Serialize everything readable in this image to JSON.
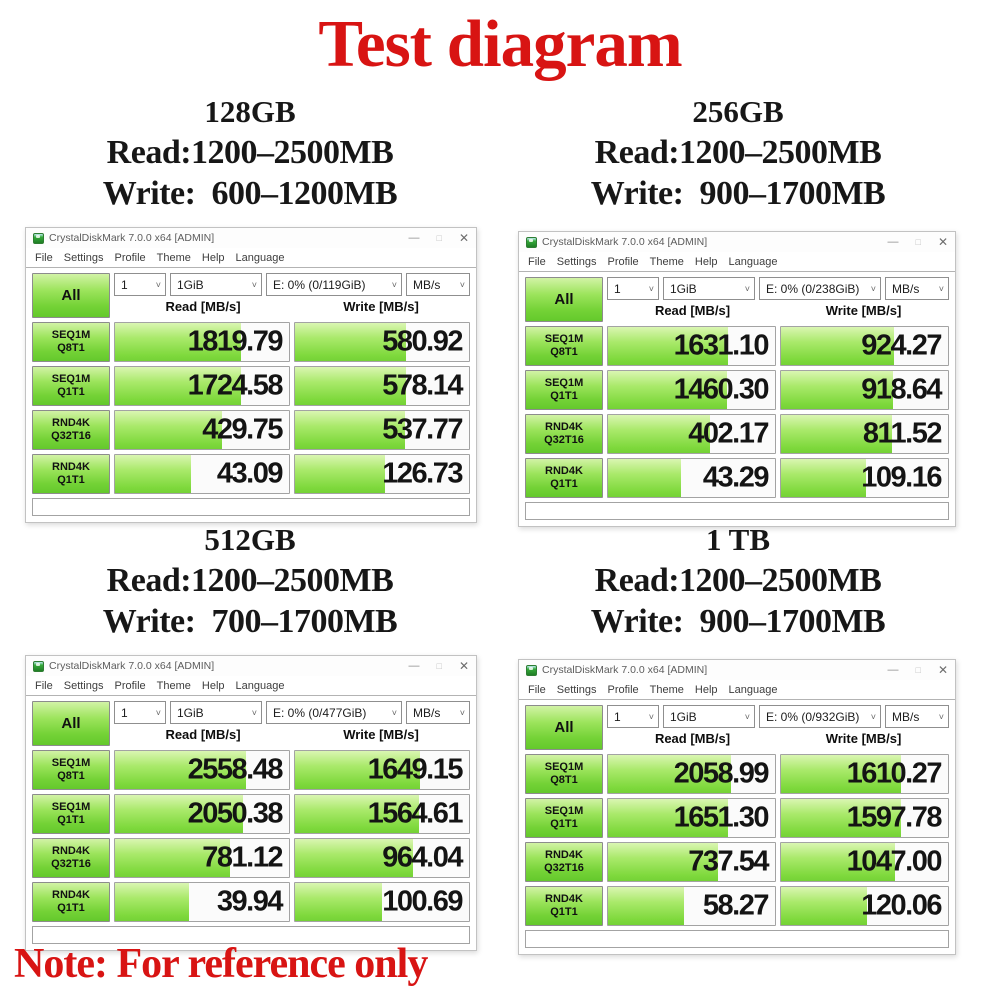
{
  "page": {
    "title": "Test diagram",
    "note": "Note: For reference only",
    "title_color": "#d81413",
    "bar_green": "#7ed63f"
  },
  "chrome": {
    "minimize": "—",
    "maximize": "□",
    "close": "✕"
  },
  "sections": [
    {
      "capacity": "128GB",
      "read_line": "Read:1200–2500MB",
      "write_line": "Write:  600–1200MB",
      "window": {
        "title": "CrystalDiskMark 7.0.0 x64 [ADMIN]",
        "menu": [
          "File",
          "Settings",
          "Profile",
          "Theme",
          "Help",
          "Language"
        ],
        "all_label": "All",
        "dropdowns": {
          "count": "1",
          "size": "1GiB",
          "drive": "E: 0% (0/119GiB)",
          "unit": "MB/s"
        },
        "read_header": "Read [MB/s]",
        "write_header": "Write [MB/s]",
        "rows": [
          {
            "label1": "SEQ1M",
            "label2": "Q8T1",
            "read": "1819.79",
            "write": "580.92"
          },
          {
            "label1": "SEQ1M",
            "label2": "Q1T1",
            "read": "1724.58",
            "write": "578.14"
          },
          {
            "label1": "RND4K",
            "label2": "Q32T16",
            "read": "429.75",
            "write": "537.77"
          },
          {
            "label1": "RND4K",
            "label2": "Q1T1",
            "read": "43.09",
            "write": "126.73"
          }
        ]
      }
    },
    {
      "capacity": "256GB",
      "read_line": "Read:1200–2500MB",
      "write_line": "Write:  900–1700MB",
      "window": {
        "title": "CrystalDiskMark 7.0.0 x64 [ADMIN]",
        "menu": [
          "File",
          "Settings",
          "Profile",
          "Theme",
          "Help",
          "Language"
        ],
        "all_label": "All",
        "dropdowns": {
          "count": "1",
          "size": "1GiB",
          "drive": "E: 0% (0/238GiB)",
          "unit": "MB/s"
        },
        "read_header": "Read [MB/s]",
        "write_header": "Write [MB/s]",
        "rows": [
          {
            "label1": "SEQ1M",
            "label2": "Q8T1",
            "read": "1631.10",
            "write": "924.27"
          },
          {
            "label1": "SEQ1M",
            "label2": "Q1T1",
            "read": "1460.30",
            "write": "918.64"
          },
          {
            "label1": "RND4K",
            "label2": "Q32T16",
            "read": "402.17",
            "write": "811.52"
          },
          {
            "label1": "RND4K",
            "label2": "Q1T1",
            "read": "43.29",
            "write": "109.16"
          }
        ]
      }
    },
    {
      "capacity": "512GB",
      "read_line": "Read:1200–2500MB",
      "write_line": "Write:  700–1700MB",
      "window": {
        "title": "CrystalDiskMark 7.0.0 x64 [ADMIN]",
        "menu": [
          "File",
          "Settings",
          "Profile",
          "Theme",
          "Help",
          "Language"
        ],
        "all_label": "All",
        "dropdowns": {
          "count": "1",
          "size": "1GiB",
          "drive": "E: 0% (0/477GiB)",
          "unit": "MB/s"
        },
        "read_header": "Read [MB/s]",
        "write_header": "Write [MB/s]",
        "rows": [
          {
            "label1": "SEQ1M",
            "label2": "Q8T1",
            "read": "2558.48",
            "write": "1649.15"
          },
          {
            "label1": "SEQ1M",
            "label2": "Q1T1",
            "read": "2050.38",
            "write": "1564.61"
          },
          {
            "label1": "RND4K",
            "label2": "Q32T16",
            "read": "781.12",
            "write": "964.04"
          },
          {
            "label1": "RND4K",
            "label2": "Q1T1",
            "read": "39.94",
            "write": "100.69"
          }
        ]
      }
    },
    {
      "capacity": "1 TB",
      "read_line": "Read:1200–2500MB",
      "write_line": "Write:  900–1700MB",
      "window": {
        "title": "CrystalDiskMark 7.0.0 x64 [ADMIN]",
        "menu": [
          "File",
          "Settings",
          "Profile",
          "Theme",
          "Help",
          "Language"
        ],
        "all_label": "All",
        "dropdowns": {
          "count": "1",
          "size": "1GiB",
          "drive": "E: 0% (0/932GiB)",
          "unit": "MB/s"
        },
        "read_header": "Read [MB/s]",
        "write_header": "Write [MB/s]",
        "rows": [
          {
            "label1": "SEQ1M",
            "label2": "Q8T1",
            "read": "2058.99",
            "write": "1610.27"
          },
          {
            "label1": "SEQ1M",
            "label2": "Q1T1",
            "read": "1651.30",
            "write": "1597.78"
          },
          {
            "label1": "RND4K",
            "label2": "Q32T16",
            "read": "737.54",
            "write": "1047.00"
          },
          {
            "label1": "RND4K",
            "label2": "Q1T1",
            "read": "58.27",
            "write": "120.06"
          }
        ]
      }
    }
  ]
}
